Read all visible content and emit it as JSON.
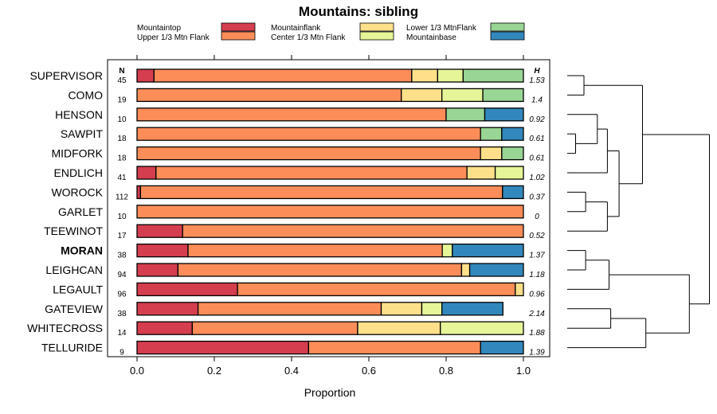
{
  "chart_data": {
    "type": "bar",
    "stacked": true,
    "orientation": "horizontal",
    "title": "Mountains: sibling",
    "xlabel": "Proportion",
    "ylabel": "",
    "xlim": [
      0,
      1
    ],
    "xticks": [
      "0.0",
      "0.2",
      "0.4",
      "0.6",
      "0.8",
      "1.0"
    ],
    "xtick_values": [
      0,
      0.2,
      0.4,
      0.6,
      0.8,
      1.0
    ],
    "n_header": "N",
    "h_header": "H",
    "highlight_category": "MORAN",
    "legend": [
      {
        "name": "Mountaintop",
        "color": "#D53E4F"
      },
      {
        "name": "Upper 1/3 Mtn Flank",
        "color": "#FC8D59"
      },
      {
        "name": "Mountainflank",
        "color": "#FEE08B"
      },
      {
        "name": "Center 1/3 Mtn Flank",
        "color": "#E6F598"
      },
      {
        "name": "Lower 1/3 MtnFlank",
        "color": "#99D594"
      },
      {
        "name": "Mountainbase",
        "color": "#3288BD"
      }
    ],
    "categories": [
      "SUPERVISOR",
      "COMO",
      "HENSON",
      "SAWPIT",
      "MIDFORK",
      "ENDLICH",
      "WOROCK",
      "GARLET",
      "TEEWINOT",
      "MORAN",
      "LEIGHCAN",
      "LEGAULT",
      "GATEVIEW",
      "WHITECROSS",
      "TELLURIDE"
    ],
    "n": [
      "45",
      "19",
      "10",
      "18",
      "18",
      "41",
      "112",
      "10",
      "17",
      "38",
      "94",
      "96",
      "38",
      "14",
      "9"
    ],
    "h": [
      "1.53",
      "1.4",
      "0.92",
      "0.61",
      "0.61",
      "1.02",
      "0.37",
      "0",
      "0.52",
      "1.37",
      "1.18",
      "0.96",
      "2.14",
      "1.88",
      "1.39"
    ],
    "series": [
      {
        "name": "Mountaintop",
        "values": [
          0.044,
          0,
          0,
          0,
          0,
          0.049,
          0.009,
          0,
          0.118,
          0.132,
          0.106,
          0.26,
          0.158,
          0.143,
          0.444
        ]
      },
      {
        "name": "Upper 1/3 Mtn Flank",
        "values": [
          0.667,
          0.684,
          0.8,
          0.889,
          0.889,
          0.805,
          0.937,
          1.0,
          0.882,
          0.658,
          0.734,
          0.719,
          0.474,
          0.428,
          0.445
        ]
      },
      {
        "name": "Mountainflank",
        "values": [
          0.067,
          0.105,
          0,
          0,
          0.055,
          0.073,
          0,
          0,
          0,
          0,
          0.021,
          0.021,
          0.105,
          0.214,
          0
        ]
      },
      {
        "name": "Center 1/3 Mtn Flank",
        "values": [
          0.066,
          0.106,
          0,
          0,
          0,
          0.073,
          0,
          0,
          0,
          0.026,
          0,
          0,
          0.052,
          0.215,
          0
        ]
      },
      {
        "name": "Lower 1/3 MtnFlank",
        "values": [
          0.156,
          0.105,
          0.1,
          0.055,
          0.056,
          0,
          0,
          0,
          0,
          0,
          0,
          0,
          0,
          0,
          0
        ]
      },
      {
        "name": "Mountainbase",
        "values": [
          0,
          0,
          0.1,
          0.056,
          0,
          0,
          0.054,
          0,
          0,
          0.184,
          0.139,
          0,
          0.158,
          0,
          0.111
        ]
      }
    ],
    "dendrogram": {
      "description": "hierarchical clustering of the 15 sites",
      "merges": [
        {
          "left": "SUPERVISOR",
          "right": "COMO",
          "height": 0.1
        },
        {
          "left": "SAWPIT",
          "right": "MIDFORK",
          "height": 0.05
        },
        {
          "left": "HENSON",
          "right": "SAWPIT+MIDFORK",
          "height": 0.18
        },
        {
          "left": "HENSON+SAWPIT+MIDFORK",
          "right": "ENDLICH",
          "height": 0.24
        },
        {
          "left": "WOROCK",
          "right": "GARLET",
          "height": 0.11
        },
        {
          "left": "WOROCK+GARLET",
          "right": "TEEWINOT",
          "height": 0.24
        },
        {
          "left": "HENSON-ENDLICH",
          "right": "WOROCK-TEEWINOT",
          "height": 0.31
        },
        {
          "left": "SUPERVISOR+COMO",
          "right": "HENSON-TEEWINOT",
          "height": 0.45
        },
        {
          "left": "MORAN",
          "right": "LEIGHCAN",
          "height": 0.11
        },
        {
          "left": "MORAN+LEIGHCAN",
          "right": "LEGAULT",
          "height": 0.25
        },
        {
          "left": "GATEVIEW",
          "right": "WHITECROSS",
          "height": 0.26
        },
        {
          "left": "GATEVIEW+WHITECROSS",
          "right": "TELLURIDE",
          "height": 0.47
        },
        {
          "left": "MORAN-LEGAULT",
          "right": "GATEVIEW-TELLURIDE",
          "height": 0.73
        },
        {
          "left": "SUPERVISOR-TEEWINOT",
          "right": "MORAN-TELLURIDE",
          "height": 0.85
        }
      ]
    }
  }
}
